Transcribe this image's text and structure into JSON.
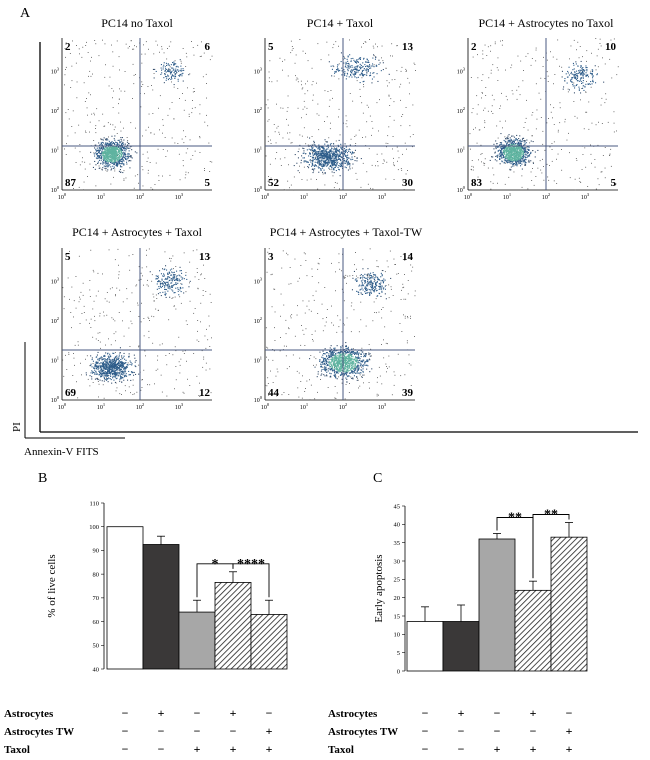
{
  "panel_letters": [
    "A",
    "B",
    "C"
  ],
  "axis_labels": {
    "y": "PI",
    "x": "Annexin-V FITS"
  },
  "hatch_color": "#222222",
  "colors": {
    "white": "#ffffff",
    "dark": "#3a3838",
    "gray": "#a7a7a7",
    "hatch": "#222222",
    "dot_dense": "#2e5d8a",
    "dot_core": "#5fb3a0",
    "line": "#4a5a80"
  },
  "chart_data": [
    {
      "type": "scatter",
      "title": "PC14 no Taxol",
      "quadrants": {
        "upper_left": "2",
        "upper_right": "6",
        "lower_left": "87",
        "lower_right": "5"
      },
      "x_ticks": [
        "10^0",
        "10^1",
        "10^2",
        "10^3"
      ],
      "y_ticks": [
        "10^0",
        "10^1",
        "10^2",
        "10^3"
      ],
      "x_scale": "log",
      "y_scale": "log"
    },
    {
      "type": "scatter",
      "title": "PC14 + Taxol",
      "quadrants": {
        "upper_left": "5",
        "upper_right": "13",
        "lower_left": "52",
        "lower_right": "30"
      },
      "x_ticks": [
        "10^0",
        "10^1",
        "10^2",
        "10^3"
      ],
      "y_ticks": [
        "10^0",
        "10^1",
        "10^2",
        "10^3"
      ],
      "x_scale": "log",
      "y_scale": "log"
    },
    {
      "type": "scatter",
      "title": "PC14 + Astrocytes no Taxol",
      "quadrants": {
        "upper_left": "2",
        "upper_right": "10",
        "lower_left": "83",
        "lower_right": "5"
      },
      "x_ticks": [
        "10^0",
        "10^1",
        "10^2",
        "10^3"
      ],
      "y_ticks": [
        "10^0",
        "10^1",
        "10^2",
        "10^3"
      ],
      "x_scale": "log",
      "y_scale": "log"
    },
    {
      "type": "scatter",
      "title": "PC14 + Astrocytes + Taxol",
      "quadrants": {
        "upper_left": "5",
        "upper_right": "13",
        "lower_left": "69",
        "lower_right": "12"
      },
      "x_ticks": [
        "10^0",
        "10^1",
        "10^2",
        "10^3"
      ],
      "y_ticks": [
        "10^0",
        "10^1",
        "10^2",
        "10^3"
      ],
      "x_scale": "log",
      "y_scale": "log"
    },
    {
      "type": "scatter",
      "title": "PC14 + Astrocytes + Taxol-TW",
      "quadrants": {
        "upper_left": "3",
        "upper_right": "14",
        "lower_left": "44",
        "lower_right": "39"
      },
      "x_ticks": [
        "10^0",
        "10^1",
        "10^2",
        "10^3"
      ],
      "y_ticks": [
        "10^0",
        "10^1",
        "10^2",
        "10^3"
      ],
      "x_scale": "log",
      "y_scale": "log"
    },
    {
      "type": "bar",
      "ylabel": "% of live cells",
      "ylim": [
        40,
        110
      ],
      "yticks": [
        40,
        50,
        60,
        70,
        80,
        90,
        100,
        110
      ],
      "values": [
        100,
        92.5,
        64,
        76.5,
        63
      ],
      "errors": [
        0,
        3.5,
        5,
        4.5,
        6
      ],
      "fills": [
        "white",
        "dark",
        "gray",
        "hatch",
        "hatch"
      ],
      "significance": [
        {
          "from": 2,
          "to": 3,
          "label": "*"
        },
        {
          "from": 3,
          "to": 4,
          "label": "****"
        }
      ],
      "conditions": [
        {
          "label": "Astrocytes",
          "marks": [
            "−",
            "+",
            "−",
            "+",
            "−"
          ]
        },
        {
          "label": "Astrocytes TW",
          "marks": [
            "−",
            "−",
            "−",
            "−",
            "+"
          ]
        },
        {
          "label": "Taxol",
          "marks": [
            "−",
            "−",
            "+",
            "+",
            "+"
          ]
        }
      ]
    },
    {
      "type": "bar",
      "ylabel": "Early apoptosis",
      "ylim": [
        0,
        45
      ],
      "yticks": [
        0,
        5,
        10,
        15,
        20,
        25,
        30,
        35,
        40,
        45
      ],
      "values": [
        13.5,
        13.5,
        36,
        22,
        36.5
      ],
      "errors": [
        4,
        4.5,
        1.5,
        2.5,
        4
      ],
      "fills": [
        "white",
        "dark",
        "gray",
        "hatch",
        "hatch"
      ],
      "significance": [
        {
          "from": 2,
          "to": 3,
          "label": "**"
        },
        {
          "from": 3,
          "to": 4,
          "label": "**"
        }
      ],
      "conditions": [
        {
          "label": "Astrocytes",
          "marks": [
            "−",
            "+",
            "−",
            "+",
            "−"
          ]
        },
        {
          "label": "Astrocytes TW",
          "marks": [
            "−",
            "−",
            "−",
            "−",
            "+"
          ]
        },
        {
          "label": "Taxol",
          "marks": [
            "−",
            "−",
            "+",
            "+",
            "+"
          ]
        }
      ]
    }
  ]
}
